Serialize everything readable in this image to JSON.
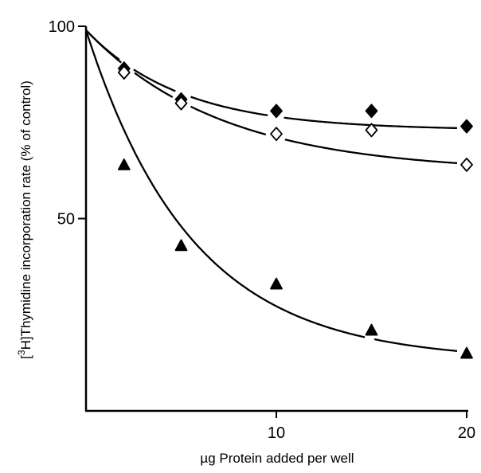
{
  "chart_data": {
    "type": "scatter",
    "xlabel": "µg Protein added per well",
    "ylabel": {
      "prefix": "[",
      "superscript": "3",
      "suffix": "H]Thymidine incorporation rate (% of control)"
    },
    "xlim": [
      0,
      20
    ],
    "ylim": [
      0,
      100
    ],
    "x_ticks": [
      10,
      20
    ],
    "y_ticks": [
      50,
      100
    ],
    "grid": false,
    "legend": "none",
    "series": [
      {
        "marker": "filled-diamond",
        "color": "#000000",
        "x": [
          2,
          5,
          10,
          15,
          20
        ],
        "y": [
          89,
          81,
          78,
          78,
          74
        ],
        "curve": {
          "start": 99,
          "asymptote": 73,
          "rate": 0.2
        }
      },
      {
        "marker": "open-diamond",
        "color": "#000000",
        "x": [
          2,
          5,
          10,
          15,
          20
        ],
        "y": [
          88,
          80,
          72,
          73,
          64
        ],
        "curve": {
          "start": 99,
          "asymptote": 62,
          "rate": 0.14
        }
      },
      {
        "marker": "filled-triangle",
        "color": "#000000",
        "x": [
          2,
          5,
          10,
          15,
          20
        ],
        "y": [
          64,
          43,
          33,
          21,
          15
        ],
        "curve": {
          "start": 99,
          "asymptote": 13,
          "rate": 0.18
        }
      }
    ]
  }
}
